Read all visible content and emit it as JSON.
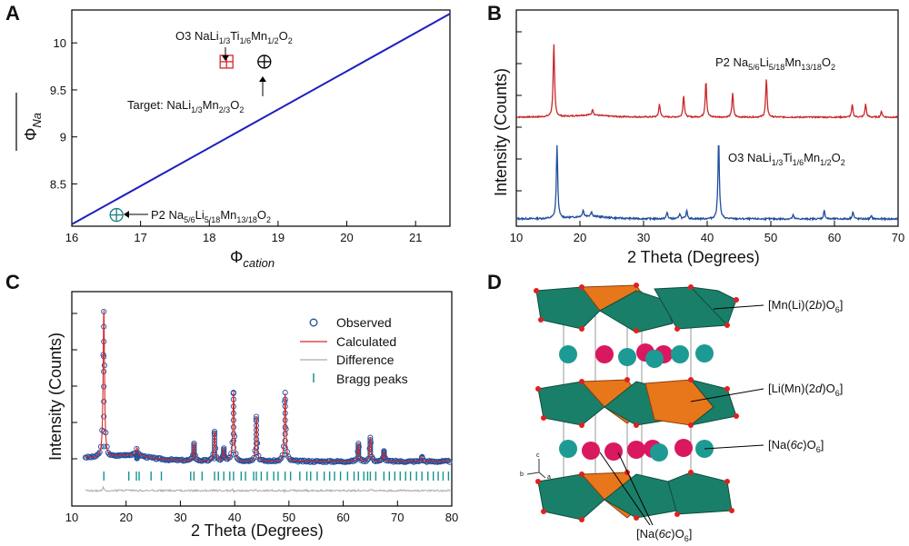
{
  "panels": {
    "A": {
      "label": "A"
    },
    "B": {
      "label": "B"
    },
    "C": {
      "label": "C"
    },
    "D": {
      "label": "D"
    }
  },
  "chart_data": [
    {
      "id": "A",
      "type": "scatter",
      "xlabel": "Φcation",
      "ylabel": "Φ‾Na",
      "xlim": [
        16,
        21.5
      ],
      "ylim": [
        8.05,
        10.35
      ],
      "xticks": [
        16,
        17,
        18,
        19,
        20,
        21
      ],
      "yticks": [
        8.5,
        9,
        9.5,
        10
      ],
      "line": {
        "x": [
          16,
          21.55
        ],
        "y": [
          8.07,
          10.33
        ],
        "color": "#1f1fbf"
      },
      "points": [
        {
          "name": "O3 NaLi1/3Ti1/6Mn1/2O2",
          "x": 18.25,
          "y": 9.8,
          "color": "#d62728",
          "marker": "square-plus"
        },
        {
          "name": "Target: NaLi1/3Mn2/3O2",
          "x": 18.8,
          "y": 9.8,
          "color": "#000000",
          "marker": "circle-plus"
        },
        {
          "name": "P2 Na5/6Li5/18Mn13/18O2",
          "x": 16.65,
          "y": 8.17,
          "color": "#17807e",
          "marker": "circle-plus"
        }
      ],
      "annotations": {
        "o3": {
          "pre": "O3 NaLi",
          "s1": "1/3",
          "m1": "Ti",
          "s2": "1/6",
          "m2": "Mn",
          "s3": "1/2",
          "m3": "O",
          "s4": "2"
        },
        "target": {
          "pre": "Target: NaLi",
          "s1": "1/3",
          "m1": "Mn",
          "s2": "2/3",
          "m2": "O",
          "s3": "2"
        },
        "p2": {
          "pre": "P2 Na",
          "s1": "5/6",
          "m1": "Li",
          "s2": "5/18",
          "m2": "Mn",
          "s3": "13/18",
          "m3": "O",
          "s4": "2"
        }
      }
    },
    {
      "id": "B",
      "type": "line",
      "xlabel": "2 Theta (Degrees)",
      "ylabel": "Intensity (Counts)",
      "xlim": [
        10,
        70
      ],
      "xticks": [
        10,
        20,
        30,
        40,
        50,
        60,
        70
      ],
      "series": [
        {
          "name": "P2 Na5/6Li5/18Mn13/18O2",
          "color": "#c8282a",
          "baseline": 0.0,
          "peaks": [
            [
              15.9,
              1.0
            ],
            [
              22.0,
              0.08
            ],
            [
              32.5,
              0.18
            ],
            [
              36.3,
              0.3
            ],
            [
              39.8,
              0.5
            ],
            [
              44.0,
              0.33
            ],
            [
              49.3,
              0.52
            ],
            [
              62.8,
              0.17
            ],
            [
              64.9,
              0.18
            ],
            [
              67.4,
              0.08
            ]
          ]
        },
        {
          "name": "O3 NaLi1/3Ti1/6Mn1/2O2",
          "color": "#1f4e9c",
          "baseline": 0.0,
          "peaks": [
            [
              16.4,
              0.78
            ],
            [
              20.5,
              0.07
            ],
            [
              21.8,
              0.05
            ],
            [
              33.7,
              0.07
            ],
            [
              35.7,
              0.06
            ],
            [
              36.8,
              0.09
            ],
            [
              41.8,
              0.87
            ],
            [
              53.5,
              0.04
            ],
            [
              58.4,
              0.09
            ],
            [
              62.9,
              0.08
            ],
            [
              65.8,
              0.03
            ]
          ]
        }
      ],
      "series_labels": {
        "p2": {
          "pre": "P2 Na",
          "s1": "5/6",
          "m1": "Li",
          "s2": "5/18",
          "m2": "Mn",
          "s3": "13/18",
          "m3": "O",
          "s4": "2"
        },
        "o3": {
          "pre": "O3 NaLi",
          "s1": "1/3",
          "m1": "Ti",
          "s2": "1/6",
          "m2": "Mn",
          "s3": "1/2",
          "m3": "O",
          "s4": "2"
        }
      }
    },
    {
      "id": "C",
      "type": "scatter",
      "xlabel": "2 Theta (Degrees)",
      "ylabel": "Intensity (Counts)",
      "xlim": [
        10,
        80
      ],
      "xticks": [
        10,
        20,
        30,
        40,
        50,
        60,
        70,
        80
      ],
      "legend": [
        "Observed",
        "Calculated",
        "Difference",
        "Bragg peaks"
      ],
      "colors": {
        "observed": "#1f4e9c",
        "calculated": "#d62728",
        "difference": "#aaaaaa",
        "bragg": "#17958f"
      },
      "peaks": [
        [
          15.9,
          1.0
        ],
        [
          22.0,
          0.05
        ],
        [
          32.5,
          0.12
        ],
        [
          36.3,
          0.2
        ],
        [
          38.0,
          0.08
        ],
        [
          39.8,
          0.46
        ],
        [
          44.0,
          0.3
        ],
        [
          49.3,
          0.46
        ],
        [
          62.8,
          0.12
        ],
        [
          65.0,
          0.16
        ],
        [
          67.5,
          0.07
        ],
        [
          74.5,
          0.03
        ]
      ],
      "bragg_positions": [
        15.9,
        20.5,
        21.9,
        22.4,
        24.6,
        26.5,
        31.9,
        32.5,
        34.0,
        36.3,
        37.0,
        38.0,
        39.1,
        39.8,
        41.2,
        42.0,
        43.5,
        44.0,
        44.9,
        46.0,
        47.2,
        48.0,
        49.3,
        50.3,
        52.0,
        53.3,
        54.0,
        55.2,
        56.5,
        57.5,
        58.4,
        59.5,
        60.8,
        62.0,
        62.8,
        63.8,
        64.5,
        65.0,
        66.0,
        67.5,
        68.5,
        69.5,
        70.5,
        71.5,
        72.4,
        73.5,
        74.5,
        75.6,
        76.6,
        77.5,
        78.4,
        79.4
      ]
    }
  ],
  "structure": {
    "labels": {
      "mnli": {
        "pre": "[Mn(Li)(2",
        "it": "b",
        "post": ")O",
        "sub": "6",
        "end": "]"
      },
      "limn": {
        "pre": "[Li(Mn)(2",
        "it": "d",
        "post": ")O",
        "sub": "6",
        "end": "]"
      },
      "na1": {
        "pre": "[Na(",
        "it": "6c",
        "post": ")O",
        "sub": "6",
        "end": "]"
      },
      "na2": {
        "pre": "[Na(",
        "it": "6c",
        "post": ")O",
        "sub": "6",
        "end": "]"
      }
    },
    "axes": {
      "c": "c",
      "b": "b",
      "a": "a"
    },
    "colors": {
      "mn_octa": "#1a7f68",
      "li_octa": "#e8761a",
      "na_teal": "#1e9a94",
      "na_pink": "#d9185f",
      "oxygen": "#e02020"
    }
  }
}
